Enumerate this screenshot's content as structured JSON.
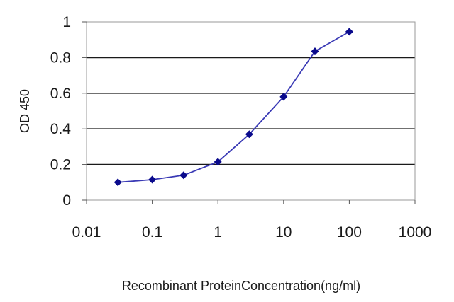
{
  "chart_data": {
    "type": "line",
    "title": "",
    "xlabel": "Recombinant ProteinConcentration(ng/ml)",
    "ylabel": "OD 450",
    "xscale": "log",
    "xlim": [
      0.01,
      1000
    ],
    "ylim": [
      0,
      1
    ],
    "x_ticks": [
      0.01,
      0.1,
      1,
      10,
      100,
      1000
    ],
    "x_tick_labels": [
      "0.01",
      "0.1",
      "1",
      "10",
      "100",
      "1000"
    ],
    "y_ticks": [
      0,
      0.2,
      0.4,
      0.6,
      0.8,
      1
    ],
    "y_tick_labels": [
      "0",
      "0.2",
      "0.4",
      "0.6",
      "0.8",
      "1"
    ],
    "grid": "horizontal",
    "legend": "none",
    "series": [
      {
        "x": [
          0.03,
          0.1,
          0.3,
          1,
          3,
          10,
          30,
          100
        ],
        "y": [
          0.1,
          0.115,
          0.14,
          0.215,
          0.37,
          0.58,
          0.835,
          0.945
        ],
        "color": "#3a3ab5",
        "marker": "diamond",
        "marker_color": "#0a0a8c"
      }
    ],
    "colors": {
      "plot_background": "#ffffff",
      "plot_border": "#9a9a9a",
      "gridline": "#1a1a1a"
    }
  }
}
